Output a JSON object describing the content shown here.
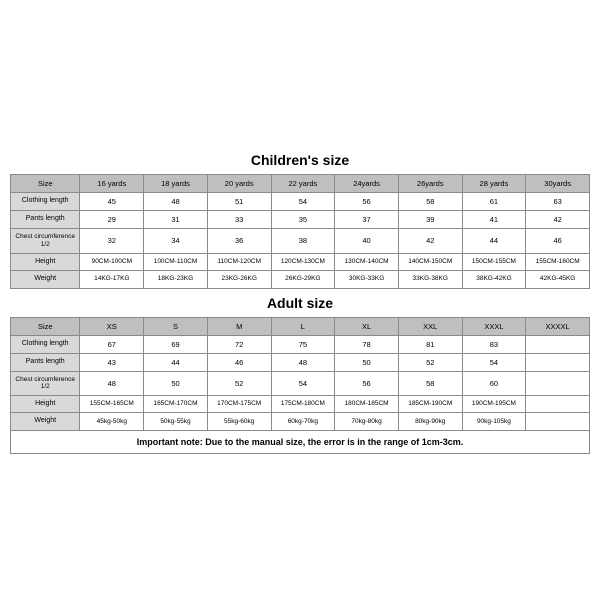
{
  "children": {
    "title": "Children's size",
    "headers": [
      "Size",
      "16 yards",
      "18 yards",
      "20 yards",
      "22 yards",
      "24yards",
      "26yards",
      "28 yards",
      "30yards"
    ],
    "rows": [
      {
        "label": "Clothing length",
        "cells": [
          "45",
          "48",
          "51",
          "54",
          "56",
          "58",
          "61",
          "63"
        ]
      },
      {
        "label": "Pants length",
        "cells": [
          "29",
          "31",
          "33",
          "35",
          "37",
          "39",
          "41",
          "42"
        ]
      },
      {
        "label": "Chest circumference 1/2",
        "cells": [
          "32",
          "34",
          "36",
          "38",
          "40",
          "42",
          "44",
          "46"
        ]
      },
      {
        "label": "Height",
        "cells": [
          "90CM-100CM",
          "100CM-110CM",
          "110CM-120CM",
          "120CM-130CM",
          "130CM-140CM",
          "140CM-150CM",
          "150CM-155CM",
          "155CM-160CM"
        ]
      },
      {
        "label": "Weight",
        "cells": [
          "14KG-17KG",
          "18KG-23KG",
          "23KG-26KG",
          "26KG-29KG",
          "30KG-33KG",
          "33KG-38KG",
          "38KG-42KG",
          "42KG-45KG"
        ]
      }
    ]
  },
  "adult": {
    "title": "Adult size",
    "headers": [
      "Size",
      "XS",
      "S",
      "M",
      "L",
      "XL",
      "XXL",
      "XXXL",
      "XXXXL"
    ],
    "rows": [
      {
        "label": "Clothing length",
        "cells": [
          "67",
          "69",
          "72",
          "75",
          "78",
          "81",
          "83",
          ""
        ]
      },
      {
        "label": "Pants length",
        "cells": [
          "43",
          "44",
          "46",
          "48",
          "50",
          "52",
          "54",
          ""
        ]
      },
      {
        "label": "Chest circumference 1/2",
        "cells": [
          "48",
          "50",
          "52",
          "54",
          "56",
          "58",
          "60",
          ""
        ]
      },
      {
        "label": "Height",
        "cells": [
          "155CM-165CM",
          "165CM-170CM",
          "170CM-175CM",
          "175CM-180CM",
          "180CM-185CM",
          "185CM-190CM",
          "190CM-195CM",
          ""
        ]
      },
      {
        "label": "Weight",
        "cells": [
          "45kg-50kg",
          "50kg-55kg",
          "55kg-60kg",
          "60kg-70kg",
          "70kg-80kg",
          "80kg-90kg",
          "90kg-105kg",
          ""
        ]
      }
    ]
  },
  "note": "Important note: Due to the manual size, the error is in the range of 1cm-3cm.",
  "style": {
    "header_bg": "#bfbfbf",
    "label_bg": "#d9d9d9",
    "border_color": "#8a8a8a",
    "text_color": "#000000",
    "bg": "#ffffff"
  }
}
